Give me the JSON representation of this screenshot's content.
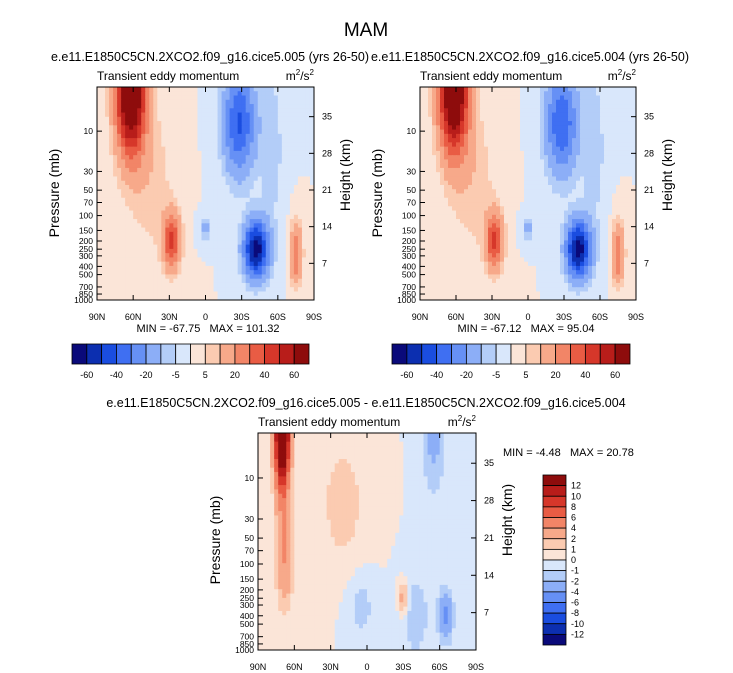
{
  "figure_title": "MAM",
  "chart_data": [
    {
      "type": "heatmap",
      "case": "e.e11.E1850C5CN.2XCO2.f09_g16.cice5.005 (yrs 26-50)",
      "title": "Transient eddy momentum",
      "units": "m²/s²",
      "units_base": "m",
      "units_exp": "2",
      "units_den": "/s",
      "xlabel": "",
      "ylabel": "Pressure (mb)",
      "y2label": "Height (km)",
      "x_ticks": [
        "90N",
        "60N",
        "30N",
        "0",
        "30S",
        "60S",
        "90S"
      ],
      "y_ticks": [
        "10",
        "30",
        "50",
        "70",
        "100",
        "150",
        "200",
        "250",
        "300",
        "400",
        "500",
        "700",
        "850",
        "1000"
      ],
      "y2_ticks": [
        "35",
        "28",
        "21",
        "14",
        "7"
      ],
      "stats_text": "MIN = -67.75   MAX = 101.32",
      "min": -67.75,
      "max": 101.32,
      "colorbar_labels": [
        "-60",
        "-40",
        "-20",
        "-5",
        "5",
        "20",
        "40",
        "60"
      ],
      "colorbar_levels": [
        -70,
        -60,
        -50,
        -40,
        -30,
        -20,
        -10,
        -5,
        0,
        5,
        10,
        20,
        30,
        40,
        50,
        60,
        70
      ],
      "features": [
        {
          "lat": 62,
          "logp": 0.5,
          "value": 90,
          "width": 12,
          "depth": 0.75
        },
        {
          "lat": 28,
          "logp": 2.3,
          "value": 42,
          "width": 7,
          "depth": 0.33
        },
        {
          "lat": 0,
          "logp": 2.15,
          "value": -12,
          "width": 5,
          "depth": 0.15
        },
        {
          "lat": -28,
          "logp": 0.9,
          "value": -42,
          "width": 13,
          "depth": 0.6
        },
        {
          "lat": -42,
          "logp": 2.4,
          "value": -66,
          "width": 10,
          "depth": 0.33
        },
        {
          "lat": -75,
          "logp": 2.45,
          "value": 30,
          "width": 5,
          "depth": 0.35
        },
        {
          "lat": 45,
          "logp": 1.6,
          "value": 8,
          "width": 18,
          "depth": 0.9
        },
        {
          "lat": -55,
          "logp": 1.2,
          "value": -8,
          "width": 10,
          "depth": 1.0
        }
      ]
    },
    {
      "type": "heatmap",
      "case": "e.e11.E1850C5CN.2XCO2.f09_g16.cice5.004 (yrs 26-50)",
      "title": "Transient eddy momentum",
      "units": "m²/s²",
      "units_base": "m",
      "units_exp": "2",
      "units_den": "/s",
      "ylabel": "Pressure (mb)",
      "y2label": "Height (km)",
      "x_ticks": [
        "90N",
        "60N",
        "30N",
        "0",
        "30S",
        "60S",
        "90S"
      ],
      "y_ticks": [
        "10",
        "30",
        "50",
        "70",
        "100",
        "150",
        "200",
        "250",
        "300",
        "400",
        "500",
        "700",
        "850",
        "1000"
      ],
      "y2_ticks": [
        "35",
        "28",
        "21",
        "14",
        "7"
      ],
      "stats_text": "MIN = -67.12   MAX = 95.04",
      "min": -67.12,
      "max": 95.04,
      "colorbar_labels": [
        "-60",
        "-40",
        "-20",
        "-5",
        "5",
        "20",
        "40",
        "60"
      ],
      "colorbar_levels": [
        -70,
        -60,
        -50,
        -40,
        -30,
        -20,
        -10,
        -5,
        0,
        5,
        10,
        20,
        30,
        40,
        50,
        60,
        70
      ],
      "features": [
        {
          "lat": 62,
          "logp": 0.5,
          "value": 86,
          "width": 12,
          "depth": 0.75
        },
        {
          "lat": 28,
          "logp": 2.3,
          "value": 42,
          "width": 7,
          "depth": 0.33
        },
        {
          "lat": 0,
          "logp": 2.15,
          "value": -12,
          "width": 5,
          "depth": 0.15
        },
        {
          "lat": -28,
          "logp": 0.9,
          "value": -40,
          "width": 13,
          "depth": 0.6
        },
        {
          "lat": -42,
          "logp": 2.4,
          "value": -66,
          "width": 10,
          "depth": 0.33
        },
        {
          "lat": -75,
          "logp": 2.45,
          "value": 30,
          "width": 5,
          "depth": 0.35
        },
        {
          "lat": 45,
          "logp": 1.6,
          "value": 8,
          "width": 18,
          "depth": 0.9
        },
        {
          "lat": -55,
          "logp": 1.2,
          "value": -8,
          "width": 10,
          "depth": 1.0
        }
      ]
    },
    {
      "type": "heatmap",
      "case": "e.e11.E1850C5CN.2XCO2.f09_g16.cice5.005 - e.e11.E1850C5CN.2XCO2.f09_g16.cice5.004",
      "title": "Transient eddy momentum",
      "units": "m²/s²",
      "units_base": "m",
      "units_exp": "2",
      "units_den": "/s",
      "ylabel": "Pressure (mb)",
      "y2label": "Height (km)",
      "x_ticks": [
        "90N",
        "60N",
        "30N",
        "0",
        "30S",
        "60S",
        "90S"
      ],
      "y_ticks": [
        "10",
        "30",
        "50",
        "70",
        "100",
        "150",
        "200",
        "250",
        "300",
        "400",
        "500",
        "700",
        "850",
        "1000"
      ],
      "y2_ticks": [
        "35",
        "28",
        "21",
        "14",
        "7"
      ],
      "stats_text": "MIN = -4.48   MAX = 20.78",
      "min": -4.48,
      "max": 20.78,
      "colorbar_labels": [
        "12",
        "10",
        "8",
        "6",
        "4",
        "2",
        "1",
        "0",
        "-1",
        "-2",
        "-4",
        "-6",
        "-8",
        "-10",
        "-12"
      ],
      "colorbar_levels": [
        -14,
        -12,
        -10,
        -8,
        -6,
        -4,
        -2,
        -1,
        0,
        1,
        2,
        4,
        6,
        8,
        10,
        12,
        14
      ],
      "features": [
        {
          "lat": 70,
          "logp": 0.4,
          "value": 21,
          "width": 6,
          "depth": 0.7
        },
        {
          "lat": 68,
          "logp": 1.9,
          "value": 4,
          "width": 7,
          "depth": 0.6
        },
        {
          "lat": 20,
          "logp": 1.3,
          "value": 1.5,
          "width": 20,
          "depth": 0.8
        },
        {
          "lat": -55,
          "logp": 0.5,
          "value": -2.5,
          "width": 10,
          "depth": 0.7
        },
        {
          "lat": -40,
          "logp": 2.6,
          "value": -1.8,
          "width": 12,
          "depth": 0.5
        },
        {
          "lat": -30,
          "logp": 2.4,
          "value": 3.5,
          "width": 4,
          "depth": 0.2
        },
        {
          "lat": -65,
          "logp": 2.6,
          "value": -4.5,
          "width": 6,
          "depth": 0.3
        },
        {
          "lat": 5,
          "logp": 2.5,
          "value": -1.5,
          "width": 12,
          "depth": 0.4
        }
      ]
    }
  ],
  "palette": [
    "#0a0a7a",
    "#0c2fb0",
    "#1a4de0",
    "#3f6ff2",
    "#6690f5",
    "#8caef7",
    "#b3cdf8",
    "#d9e7fb",
    "#fbe5d8",
    "#fbcbb1",
    "#f7a98a",
    "#f28567",
    "#e95c44",
    "#d6372a",
    "#b81d1a",
    "#8e0c0c"
  ]
}
